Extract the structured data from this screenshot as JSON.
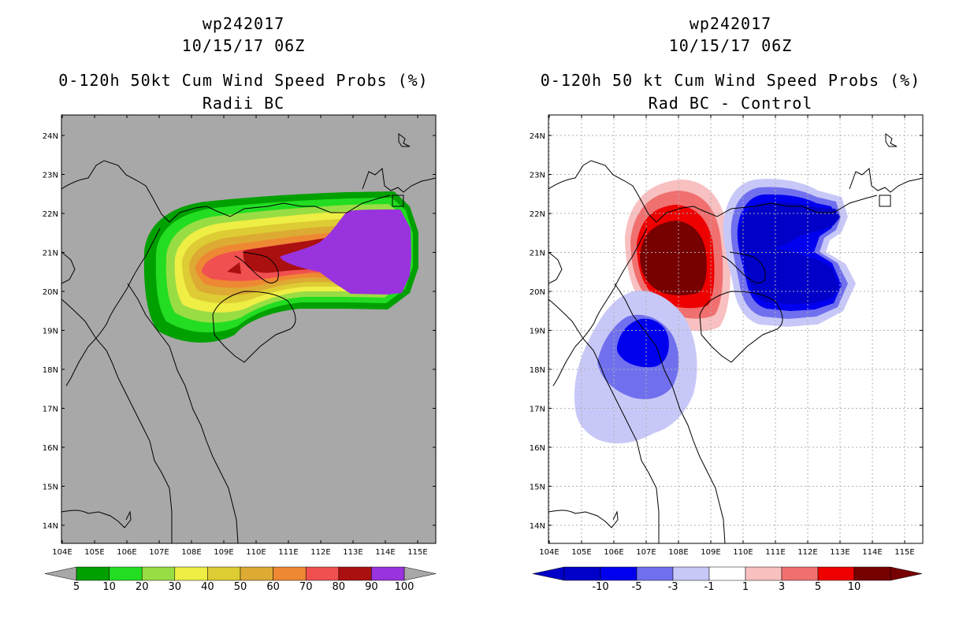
{
  "left_panel": {
    "title_lines": [
      "wp242017",
      "10/15/17 06Z",
      "0-120h 50kt Cum Wind Speed Probs (%)",
      "Radii BC"
    ],
    "background_color": "#a8a8a8",
    "lat_labels": [
      "24N",
      "23N",
      "22N",
      "21N",
      "20N",
      "19N",
      "18N",
      "17N",
      "16N",
      "15N",
      "14N"
    ],
    "lon_labels": [
      "104E",
      "105E",
      "106E",
      "107E",
      "108E",
      "109E",
      "110E",
      "111E",
      "112E",
      "113E",
      "114E",
      "115E"
    ],
    "colorbar": {
      "colors": [
        "#00a000",
        "#22dd22",
        "#99dd44",
        "#eeee44",
        "#ddcc33",
        "#ddaa33",
        "#ee8833",
        "#f05050",
        "#aa1010",
        "#9933dd"
      ],
      "labels": [
        "5",
        "10",
        "20",
        "30",
        "40",
        "50",
        "60",
        "70",
        "80",
        "90",
        "100"
      ]
    }
  },
  "right_panel": {
    "title_lines": [
      "wp242017",
      "10/15/17 06Z",
      "0-120h 50 kt Cum Wind Speed Probs (%)",
      "Rad BC - Control"
    ],
    "background_color": "#ffffff",
    "lat_labels": [
      "24N",
      "23N",
      "22N",
      "21N",
      "20N",
      "19N",
      "18N",
      "17N",
      "16N",
      "15N",
      "14N"
    ],
    "lon_labels": [
      "104E",
      "105E",
      "106E",
      "107E",
      "108E",
      "109E",
      "110E",
      "111E",
      "112E",
      "113E",
      "114E",
      "115E"
    ],
    "colorbar": {
      "colors": [
        "#0000c8",
        "#0000ee",
        "#7070ee",
        "#c8c8f8",
        "#ffffff",
        "#f8c0c0",
        "#f07070",
        "#ee0000",
        "#770000"
      ],
      "labels": [
        "-10",
        "-5",
        "-3",
        "-1",
        "1",
        "3",
        "5",
        "10"
      ]
    }
  }
}
